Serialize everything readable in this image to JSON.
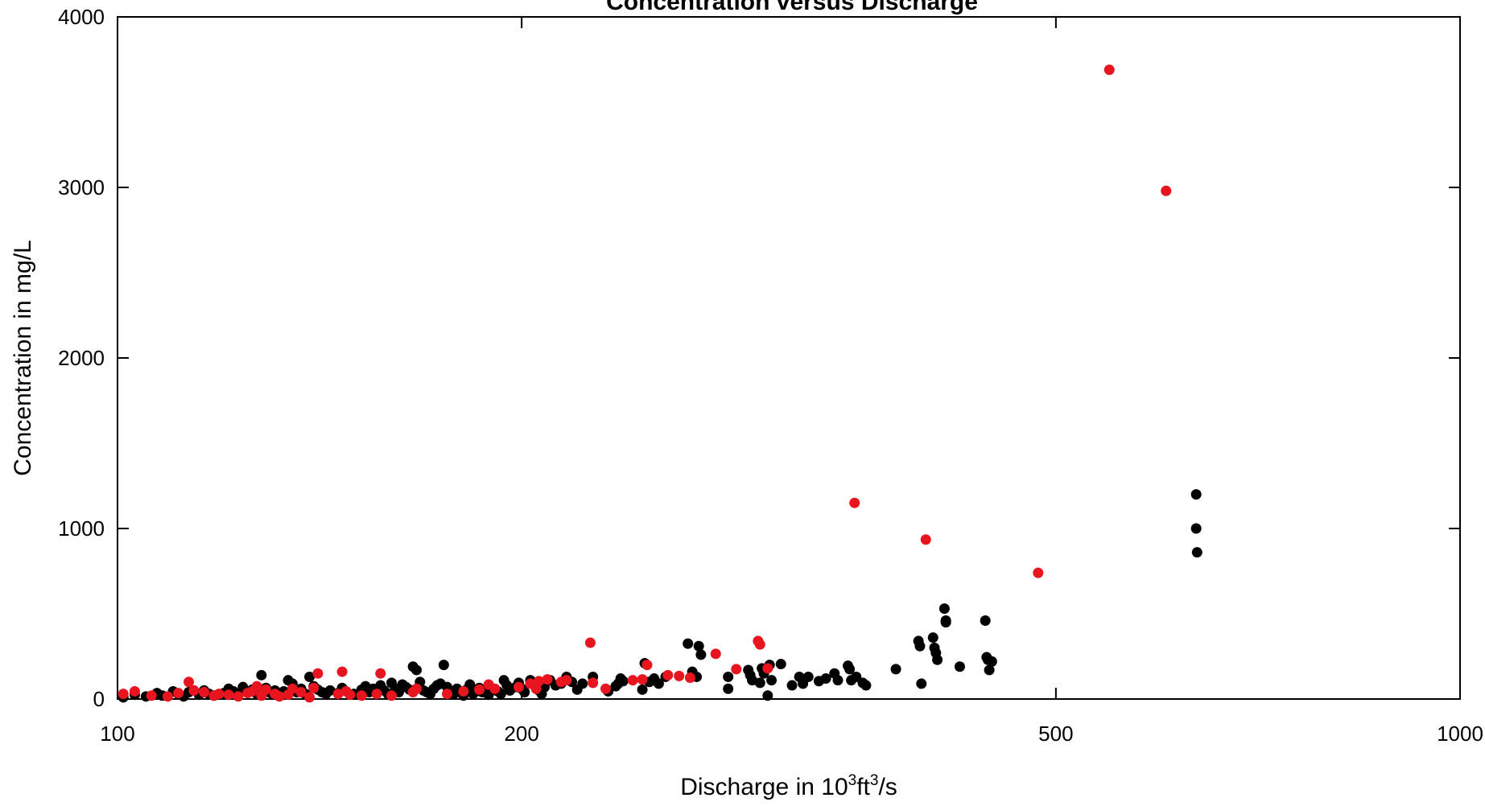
{
  "chart_data": {
    "type": "scatter",
    "title": "Concentration versus Discharge",
    "xlabel": {
      "prefix": "Discharge in 10",
      "sup1": "3",
      "mid": "ft",
      "sup2": "3",
      "suffix": "/s"
    },
    "ylabel": "Concentration in mg/L",
    "x_scale": "log",
    "xlim": [
      100,
      1000
    ],
    "ylim": [
      0,
      4000
    ],
    "x_ticks": [
      100,
      200,
      500,
      1000
    ],
    "x_tick_labels": [
      "100",
      "200",
      "500",
      "1000"
    ],
    "y_ticks": [
      0,
      1000,
      2000,
      3000,
      4000
    ],
    "y_tick_labels": [
      "0",
      "1000",
      "2000",
      "3000",
      "4000"
    ],
    "grid": false,
    "series": [
      {
        "color": "#000000",
        "points": [
          [
            101,
            10
          ],
          [
            103,
            25
          ],
          [
            105,
            15
          ],
          [
            107,
            35
          ],
          [
            108,
            20
          ],
          [
            110,
            45
          ],
          [
            111,
            30
          ],
          [
            112,
            15
          ],
          [
            113,
            40
          ],
          [
            115,
            25
          ],
          [
            116,
            50
          ],
          [
            117,
            30
          ],
          [
            118,
            20
          ],
          [
            120,
            35
          ],
          [
            121,
            60
          ],
          [
            122,
            45
          ],
          [
            123,
            25
          ],
          [
            124,
            70
          ],
          [
            125,
            40
          ],
          [
            126,
            55
          ],
          [
            127,
            30
          ],
          [
            128,
            140
          ],
          [
            129,
            65
          ],
          [
            130,
            35
          ],
          [
            131,
            50
          ],
          [
            132,
            25
          ],
          [
            133,
            45
          ],
          [
            134,
            110
          ],
          [
            135,
            90
          ],
          [
            136,
            40
          ],
          [
            137,
            60
          ],
          [
            138,
            30
          ],
          [
            139,
            130
          ],
          [
            140,
            75
          ],
          [
            141,
            55
          ],
          [
            142,
            40
          ],
          [
            143,
            30
          ],
          [
            144,
            50
          ],
          [
            146,
            35
          ],
          [
            147,
            65
          ],
          [
            148,
            45
          ],
          [
            150,
            30
          ],
          [
            152,
            55
          ],
          [
            153,
            75
          ],
          [
            154,
            40
          ],
          [
            155,
            60
          ],
          [
            156,
            35
          ],
          [
            157,
            80
          ],
          [
            158,
            50
          ],
          [
            159,
            30
          ],
          [
            160,
            95
          ],
          [
            161,
            60
          ],
          [
            162,
            40
          ],
          [
            163,
            85
          ],
          [
            164,
            70
          ],
          [
            165,
            55
          ],
          [
            166,
            190
          ],
          [
            167,
            170
          ],
          [
            168,
            100
          ],
          [
            169,
            50
          ],
          [
            170,
            40
          ],
          [
            171,
            30
          ],
          [
            172,
            60
          ],
          [
            173,
            80
          ],
          [
            174,
            90
          ],
          [
            175,
            200
          ],
          [
            176,
            70
          ],
          [
            177,
            45
          ],
          [
            178,
            30
          ],
          [
            179,
            60
          ],
          [
            180,
            40
          ],
          [
            181,
            20
          ],
          [
            182,
            55
          ],
          [
            183,
            85
          ],
          [
            184,
            30
          ],
          [
            185,
            45
          ],
          [
            186,
            65
          ],
          [
            187,
            40
          ],
          [
            189,
            25
          ],
          [
            190,
            60
          ],
          [
            192,
            45
          ],
          [
            193,
            30
          ],
          [
            194,
            110
          ],
          [
            195,
            80
          ],
          [
            196,
            50
          ],
          [
            198,
            70
          ],
          [
            199,
            95
          ],
          [
            200,
            60
          ],
          [
            201,
            40
          ],
          [
            203,
            110
          ],
          [
            205,
            85
          ],
          [
            206,
            50
          ],
          [
            207,
            30
          ],
          [
            208,
            70
          ],
          [
            210,
            110
          ],
          [
            212,
            80
          ],
          [
            214,
            90
          ],
          [
            216,
            130
          ],
          [
            218,
            100
          ],
          [
            220,
            55
          ],
          [
            222,
            90
          ],
          [
            226,
            130
          ],
          [
            232,
            45
          ],
          [
            235,
            75
          ],
          [
            236,
            90
          ],
          [
            237,
            120
          ],
          [
            238,
            105
          ],
          [
            246,
            55
          ],
          [
            247,
            210
          ],
          [
            249,
            100
          ],
          [
            251,
            120
          ],
          [
            253,
            90
          ],
          [
            256,
            130
          ],
          [
            266,
            325
          ],
          [
            268,
            160
          ],
          [
            270,
            130
          ],
          [
            271,
            310
          ],
          [
            272,
            260
          ],
          [
            285,
            130
          ],
          [
            285,
            60
          ],
          [
            295,
            170
          ],
          [
            296,
            140
          ],
          [
            297,
            110
          ],
          [
            301,
            95
          ],
          [
            302,
            180
          ],
          [
            303,
            150
          ],
          [
            305,
            20
          ],
          [
            306,
            200
          ],
          [
            307,
            110
          ],
          [
            312,
            205
          ],
          [
            318,
            80
          ],
          [
            322,
            130
          ],
          [
            324,
            90
          ],
          [
            327,
            130
          ],
          [
            333,
            105
          ],
          [
            337,
            120
          ],
          [
            342,
            150
          ],
          [
            344,
            110
          ],
          [
            350,
            195
          ],
          [
            351,
            175
          ],
          [
            352,
            110
          ],
          [
            355,
            130
          ],
          [
            359,
            95
          ],
          [
            361,
            80
          ],
          [
            380,
            175
          ],
          [
            395,
            340
          ],
          [
            396,
            310
          ],
          [
            397,
            90
          ],
          [
            405,
            360
          ],
          [
            406,
            300
          ],
          [
            407,
            270
          ],
          [
            408,
            230
          ],
          [
            413,
            530
          ],
          [
            414,
            460
          ],
          [
            414,
            450
          ],
          [
            424,
            190
          ],
          [
            443,
            460
          ],
          [
            444,
            245
          ],
          [
            445,
            230
          ],
          [
            446,
            170
          ],
          [
            448,
            220
          ],
          [
            636,
            1200
          ],
          [
            636,
            1000
          ],
          [
            637,
            860
          ]
        ]
      },
      {
        "color": "#e8141e",
        "points": [
          [
            101,
            30
          ],
          [
            103,
            45
          ],
          [
            106,
            20
          ],
          [
            109,
            15
          ],
          [
            111,
            35
          ],
          [
            113,
            100
          ],
          [
            114,
            50
          ],
          [
            116,
            40
          ],
          [
            118,
            20
          ],
          [
            119,
            30
          ],
          [
            121,
            25
          ],
          [
            123,
            15
          ],
          [
            125,
            35
          ],
          [
            126,
            45
          ],
          [
            127,
            75
          ],
          [
            128,
            20
          ],
          [
            129,
            55
          ],
          [
            131,
            30
          ],
          [
            132,
            15
          ],
          [
            134,
            25
          ],
          [
            135,
            60
          ],
          [
            137,
            40
          ],
          [
            139,
            10
          ],
          [
            140,
            65
          ],
          [
            141,
            150
          ],
          [
            146,
            30
          ],
          [
            147,
            160
          ],
          [
            148,
            45
          ],
          [
            149,
            25
          ],
          [
            152,
            20
          ],
          [
            156,
            30
          ],
          [
            157,
            150
          ],
          [
            160,
            20
          ],
          [
            166,
            40
          ],
          [
            167,
            60
          ],
          [
            176,
            30
          ],
          [
            181,
            45
          ],
          [
            186,
            55
          ],
          [
            189,
            85
          ],
          [
            191,
            60
          ],
          [
            199,
            70
          ],
          [
            203,
            90
          ],
          [
            205,
            60
          ],
          [
            206,
            105
          ],
          [
            209,
            115
          ],
          [
            214,
            100
          ],
          [
            216,
            110
          ],
          [
            225,
            330
          ],
          [
            226,
            95
          ],
          [
            231,
            60
          ],
          [
            242,
            110
          ],
          [
            246,
            115
          ],
          [
            248,
            200
          ],
          [
            257,
            140
          ],
          [
            262,
            135
          ],
          [
            267,
            125
          ],
          [
            279,
            265
          ],
          [
            289,
            175
          ],
          [
            300,
            340
          ],
          [
            301,
            320
          ],
          [
            305,
            180
          ],
          [
            354,
            1150
          ],
          [
            400,
            935
          ],
          [
            485,
            740
          ],
          [
            548,
            3690
          ],
          [
            604,
            2980
          ]
        ]
      }
    ]
  }
}
